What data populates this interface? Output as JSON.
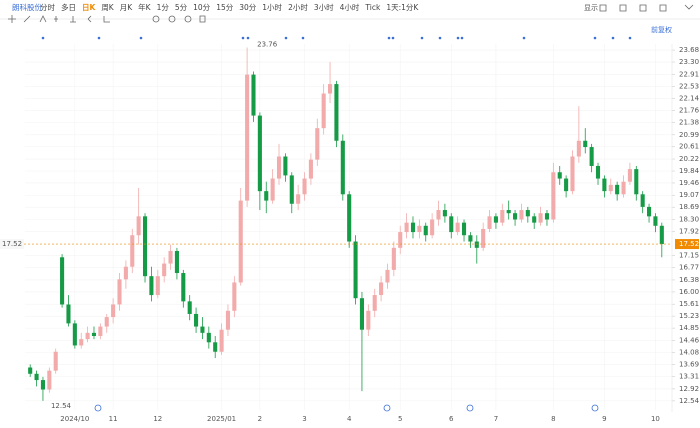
{
  "toolbar": {
    "stock": "朗科股份",
    "tabs": [
      "分时",
      "多日",
      "日K",
      "周K",
      "月K",
      "年K",
      "1分",
      "5分",
      "10分",
      "15分",
      "30分",
      "1小时",
      "2小时",
      "3小时",
      "4小时",
      "Tick",
      "1天:1分K"
    ],
    "display": "显示"
  },
  "chart_data": {
    "type": "candlestick",
    "adjust_label": "前复权",
    "up_color": "#f2aaaa",
    "down_color": "#159a45",
    "grid": true,
    "price_line": 17.52,
    "ylim": [
      12.25,
      24.0
    ],
    "yticks": [
      23.68,
      {
        "value": 23.3,
        "label": "23.30"
      },
      22.91,
      22.53,
      22.14,
      21.76,
      21.38,
      20.99,
      20.61,
      20.22,
      19.84,
      19.46,
      19.07,
      18.69,
      {
        "value": 18.3,
        "label": "18.30"
      },
      17.92,
      17.15,
      16.77,
      16.38,
      {
        "value": 16,
        "label": "16.00"
      },
      15.61,
      15.23,
      14.85,
      14.46,
      14.08,
      13.69,
      13.31,
      12.92,
      12.54
    ],
    "categories": [
      null,
      null,
      null,
      null,
      null,
      null,
      null,
      "2024/10",
      null,
      null,
      null,
      null,
      null,
      "11",
      null,
      null,
      null,
      null,
      null,
      null,
      "12",
      null,
      null,
      null,
      null,
      null,
      null,
      null,
      null,
      null,
      "2025/01",
      null,
      null,
      null,
      null,
      null,
      "2",
      null,
      null,
      null,
      null,
      null,
      null,
      "3",
      null,
      null,
      null,
      null,
      null,
      null,
      "4",
      null,
      null,
      null,
      null,
      null,
      null,
      null,
      "5",
      null,
      null,
      null,
      null,
      null,
      null,
      null,
      "6",
      null,
      null,
      null,
      null,
      null,
      null,
      "7",
      null,
      null,
      null,
      null,
      null,
      null,
      null,
      null,
      "8",
      null,
      null,
      null,
      null,
      null,
      null,
      null,
      "9",
      null,
      null,
      null,
      null,
      null,
      null,
      null,
      "10",
      null
    ],
    "open": [
      13.6,
      13.4,
      13.2,
      12.9,
      13.5,
      17.1,
      15.6,
      15.0,
      14.3,
      14.5,
      14.7,
      14.6,
      14.9,
      15.2,
      15.6,
      16.4,
      16.8,
      17.8,
      18.4,
      16.5,
      15.9,
      16.5,
      16.9,
      17.3,
      16.6,
      15.7,
      15.3,
      14.9,
      14.7,
      14.4,
      14.1,
      14.8,
      15.4,
      16.3,
      18.9,
      22.9,
      21.6,
      19.2,
      18.9,
      19.6,
      20.3,
      19.7,
      18.8,
      19.1,
      19.6,
      20.2,
      21.2,
      22.3,
      22.6,
      20.8,
      19.1,
      17.6,
      15.8,
      14.8,
      15.4,
      15.9,
      16.3,
      16.7,
      17.4,
      17.9,
      18.2,
      17.9,
      18.1,
      17.8,
      18.3,
      18.6,
      18.4,
      17.9,
      18.2,
      17.8,
      17.6,
      17.4,
      18.0,
      18.4,
      18.2,
      18.6,
      18.5,
      18.3,
      18.6,
      18.4,
      18.2,
      18.5,
      18.3,
      19.8,
      19.6,
      19.2,
      20.3,
      20.8,
      20.6,
      20.0,
      19.6,
      19.2,
      19.4,
      19.1,
      19.5,
      19.9,
      19.1,
      18.7,
      18.4,
      18.1
    ],
    "high": [
      13.7,
      13.5,
      13.3,
      13.6,
      14.2,
      17.2,
      15.9,
      15.1,
      14.7,
      14.9,
      14.9,
      15.0,
      15.3,
      15.8,
      16.6,
      17.0,
      18.0,
      19.3,
      18.5,
      16.8,
      16.7,
      17.1,
      17.5,
      17.4,
      16.7,
      15.9,
      15.5,
      15.2,
      14.9,
      14.6,
      15.0,
      15.6,
      16.5,
      19.3,
      23.76,
      23.0,
      21.7,
      19.5,
      19.9,
      20.7,
      20.4,
      19.8,
      19.4,
      19.8,
      20.4,
      21.5,
      22.6,
      23.3,
      22.7,
      21.0,
      19.2,
      17.8,
      16.0,
      15.6,
      16.1,
      16.5,
      16.9,
      17.6,
      18.1,
      18.5,
      18.4,
      18.3,
      18.2,
      18.5,
      18.9,
      18.8,
      18.5,
      18.4,
      18.3,
      17.9,
      17.8,
      18.2,
      18.6,
      18.5,
      18.8,
      18.9,
      18.6,
      18.8,
      18.7,
      18.5,
      18.7,
      18.6,
      20.1,
      20.0,
      19.7,
      20.5,
      21.9,
      21.2,
      20.7,
      20.1,
      19.7,
      19.6,
      19.5,
      19.7,
      20.1,
      20.0,
      19.2,
      18.8,
      18.5,
      18.2
    ],
    "low": [
      13.3,
      13.0,
      12.54,
      12.8,
      13.4,
      15.5,
      14.9,
      14.2,
      14.2,
      14.4,
      14.5,
      14.5,
      14.7,
      15.0,
      15.4,
      16.1,
      16.6,
      17.5,
      16.3,
      15.7,
      15.8,
      16.3,
      16.7,
      16.4,
      15.5,
      15.1,
      14.7,
      14.5,
      14.2,
      13.9,
      14.0,
      14.6,
      15.2,
      16.2,
      18.7,
      21.4,
      18.6,
      18.5,
      18.8,
      19.4,
      19.5,
      18.5,
      18.6,
      18.9,
      19.4,
      20.0,
      21.0,
      22.0,
      20.6,
      18.9,
      17.4,
      15.6,
      12.85,
      14.6,
      15.2,
      15.7,
      16.1,
      16.5,
      17.2,
      17.7,
      17.7,
      17.7,
      17.6,
      17.7,
      18.1,
      18.2,
      17.7,
      17.8,
      17.6,
      17.4,
      16.9,
      17.3,
      17.9,
      18.0,
      18.1,
      18.3,
      18.1,
      18.2,
      18.2,
      18.0,
      18.1,
      18.1,
      18.2,
      19.4,
      19.0,
      19.1,
      20.1,
      20.4,
      19.8,
      19.4,
      19.0,
      19.1,
      18.9,
      19.0,
      19.4,
      18.9,
      18.5,
      18.2,
      17.9,
      17.1
    ],
    "close": [
      13.4,
      13.2,
      12.9,
      13.5,
      14.1,
      15.6,
      15.0,
      14.3,
      14.5,
      14.7,
      14.6,
      14.9,
      15.2,
      15.6,
      16.4,
      16.8,
      17.8,
      18.4,
      16.5,
      15.9,
      16.5,
      16.9,
      17.3,
      16.6,
      15.7,
      15.3,
      14.9,
      14.7,
      14.4,
      14.1,
      14.8,
      15.4,
      16.3,
      18.9,
      22.9,
      21.6,
      19.2,
      18.9,
      19.6,
      20.3,
      19.7,
      18.8,
      19.1,
      19.6,
      20.2,
      21.2,
      22.3,
      22.6,
      20.8,
      19.1,
      17.6,
      15.8,
      14.8,
      15.4,
      15.9,
      16.3,
      16.7,
      17.4,
      17.9,
      18.2,
      17.9,
      18.1,
      17.8,
      18.3,
      18.6,
      18.4,
      17.9,
      18.2,
      17.8,
      17.6,
      17.4,
      18.0,
      18.4,
      18.2,
      18.6,
      18.5,
      18.3,
      18.6,
      18.4,
      18.2,
      18.5,
      18.3,
      19.8,
      19.6,
      19.2,
      20.3,
      20.8,
      20.6,
      20.0,
      19.6,
      19.2,
      19.4,
      19.1,
      19.5,
      19.9,
      19.1,
      18.7,
      18.4,
      18.1,
      17.52
    ]
  }
}
